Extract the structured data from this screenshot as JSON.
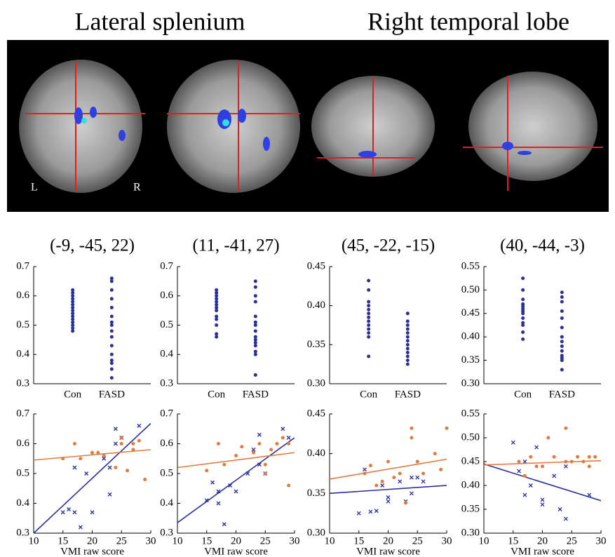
{
  "header": {
    "left_title": "Lateral splenium",
    "right_title": "Right temporal lobe",
    "label_left": "L",
    "label_right": "R"
  },
  "chart_data": [
    {
      "type": "strip",
      "title": "(-9, -45, 22)",
      "categories": [
        "Con",
        "FASD"
      ],
      "color": "#2b2f9c",
      "values": [
        [
          0.48,
          0.49,
          0.5,
          0.51,
          0.52,
          0.53,
          0.54,
          0.55,
          0.56,
          0.57,
          0.58,
          0.59,
          0.6,
          0.61,
          0.62
        ],
        [
          0.32,
          0.35,
          0.37,
          0.38,
          0.4,
          0.43,
          0.46,
          0.48,
          0.5,
          0.51,
          0.53,
          0.56,
          0.59,
          0.62,
          0.65,
          0.66
        ]
      ],
      "ylim": [
        0.3,
        0.7
      ],
      "yticks": [
        0.3,
        0.4,
        0.5,
        0.6,
        0.7
      ]
    },
    {
      "type": "strip",
      "title": "(11, -41, 27)",
      "categories": [
        "Con",
        "FASD"
      ],
      "color": "#2b2f9c",
      "values": [
        [
          0.46,
          0.47,
          0.5,
          0.52,
          0.53,
          0.55,
          0.56,
          0.57,
          0.58,
          0.59,
          0.6,
          0.61,
          0.62
        ],
        [
          0.33,
          0.4,
          0.41,
          0.43,
          0.44,
          0.45,
          0.46,
          0.48,
          0.5,
          0.51,
          0.53,
          0.58,
          0.6,
          0.63,
          0.65
        ]
      ],
      "ylim": [
        0.3,
        0.7
      ],
      "yticks": [
        0.3,
        0.4,
        0.5,
        0.6,
        0.7
      ]
    },
    {
      "type": "strip",
      "title": "(45, -22, -15)",
      "categories": [
        "Con",
        "FASD"
      ],
      "color": "#2b2f9c",
      "values": [
        [
          0.335,
          0.36,
          0.365,
          0.37,
          0.375,
          0.38,
          0.385,
          0.39,
          0.395,
          0.4,
          0.405,
          0.42,
          0.432
        ],
        [
          0.325,
          0.33,
          0.335,
          0.34,
          0.345,
          0.35,
          0.355,
          0.36,
          0.365,
          0.37,
          0.375,
          0.38,
          0.39
        ]
      ],
      "ylim": [
        0.3,
        0.45
      ],
      "yticks": [
        {
          "value": 0.3,
          "label": "0.30"
        },
        0.35,
        {
          "value": 0.4,
          "label": "0.40"
        },
        0.45
      ]
    },
    {
      "type": "strip",
      "title": "(40, -44, -3)",
      "categories": [
        "Con",
        "FASD"
      ],
      "color": "#2b2f9c",
      "values": [
        [
          0.395,
          0.41,
          0.425,
          0.43,
          0.44,
          0.45,
          0.455,
          0.46,
          0.465,
          0.47,
          0.48,
          0.5,
          0.525
        ],
        [
          0.33,
          0.35,
          0.355,
          0.36,
          0.37,
          0.38,
          0.39,
          0.4,
          0.42,
          0.44,
          0.455,
          0.475,
          0.485,
          0.495
        ]
      ],
      "ylim": [
        0.3,
        0.55
      ],
      "yticks": [
        {
          "value": 0.3,
          "label": "0.30"
        },
        0.35,
        {
          "value": 0.4,
          "label": "0.40"
        },
        0.45,
        {
          "value": 0.5,
          "label": "0.50"
        },
        0.55
      ]
    },
    {
      "type": "scatter",
      "xlabel": "VMI raw score",
      "xlim": [
        10,
        30
      ],
      "xticks": [
        10,
        15,
        20,
        25,
        30
      ],
      "ylim": [
        0.3,
        0.7
      ],
      "yticks": [
        0.3,
        0.4,
        0.5,
        0.6,
        0.7
      ],
      "series": [
        {
          "color": "#2b2f9c",
          "marker": "x",
          "x": [
            15,
            16,
            17,
            17,
            18,
            19,
            20,
            22,
            23,
            23,
            24,
            24,
            25,
            28
          ],
          "values": [
            0.37,
            0.38,
            0.52,
            0.37,
            0.32,
            0.5,
            0.37,
            0.55,
            0.43,
            0.52,
            0.65,
            0.6,
            0.62,
            0.66
          ],
          "fit_x": [
            10,
            30
          ],
          "fit_y": [
            0.3,
            0.668
          ]
        },
        {
          "color": "#e07b3f",
          "marker": "o",
          "x": [
            15,
            17,
            18,
            20,
            21,
            22,
            24,
            25,
            25,
            26,
            27,
            27,
            28,
            29
          ],
          "values": [
            0.55,
            0.6,
            0.55,
            0.57,
            0.57,
            0.56,
            0.52,
            0.62,
            0.6,
            0.51,
            0.58,
            0.6,
            0.61,
            0.48
          ],
          "fit_x": [
            10,
            30
          ],
          "fit_y": [
            0.545,
            0.58
          ]
        }
      ]
    },
    {
      "type": "scatter",
      "xlabel": "VMI raw score",
      "xlim": [
        10,
        30
      ],
      "xticks": [
        10,
        15,
        20,
        25,
        30
      ],
      "ylim": [
        0.3,
        0.7
      ],
      "yticks": [
        0.3,
        0.4,
        0.5,
        0.6,
        0.7
      ],
      "series": [
        {
          "color": "#2b2f9c",
          "marker": "x",
          "x": [
            15,
            16,
            17,
            17,
            18,
            19,
            20,
            22,
            23,
            24,
            24,
            25,
            28,
            29
          ],
          "values": [
            0.41,
            0.47,
            0.4,
            0.44,
            0.33,
            0.46,
            0.44,
            0.5,
            0.58,
            0.63,
            0.53,
            0.5,
            0.65,
            0.62
          ],
          "fit_x": [
            10,
            30
          ],
          "fit_y": [
            0.335,
            0.62
          ]
        },
        {
          "color": "#e07b3f",
          "marker": "o",
          "x": [
            15,
            17,
            18,
            20,
            21,
            23,
            24,
            25,
            25,
            26,
            27,
            28,
            29,
            29
          ],
          "values": [
            0.51,
            0.6,
            0.53,
            0.56,
            0.59,
            0.57,
            0.6,
            0.5,
            0.53,
            0.58,
            0.6,
            0.62,
            0.6,
            0.46
          ],
          "fit_x": [
            10,
            30
          ],
          "fit_y": [
            0.52,
            0.57
          ]
        }
      ]
    },
    {
      "type": "scatter",
      "xlabel": "VMI raw score",
      "xlim": [
        10,
        30
      ],
      "xticks": [
        10,
        15,
        20,
        25,
        30
      ],
      "ylim": [
        0.3,
        0.45
      ],
      "yticks": [
        {
          "value": 0.3,
          "label": "0.30"
        },
        0.35,
        {
          "value": 0.4,
          "label": "0.40"
        },
        0.45
      ],
      "series": [
        {
          "color": "#2b2f9c",
          "marker": "x",
          "x": [
            15,
            16,
            17,
            18,
            19,
            20,
            20,
            22,
            23,
            24,
            24,
            25,
            26
          ],
          "values": [
            0.325,
            0.38,
            0.327,
            0.328,
            0.36,
            0.345,
            0.34,
            0.365,
            0.34,
            0.37,
            0.35,
            0.37,
            0.365
          ],
          "fit_x": [
            10,
            30
          ],
          "fit_y": [
            0.35,
            0.36
          ]
        },
        {
          "color": "#e07b3f",
          "marker": "o",
          "x": [
            16,
            17,
            18,
            19,
            20,
            21,
            22,
            23,
            24,
            24,
            25,
            26,
            28,
            29,
            30
          ],
          "values": [
            0.375,
            0.385,
            0.36,
            0.365,
            0.39,
            0.37,
            0.375,
            0.338,
            0.42,
            0.432,
            0.39,
            0.375,
            0.4,
            0.38,
            0.432
          ],
          "fit_x": [
            10,
            30
          ],
          "fit_y": [
            0.368,
            0.393
          ]
        }
      ]
    },
    {
      "type": "scatter",
      "xlabel": "VMI raw score",
      "xlim": [
        10,
        30
      ],
      "xticks": [
        10,
        15,
        20,
        25,
        30
      ],
      "ylim": [
        0.3,
        0.55
      ],
      "yticks": [
        {
          "value": 0.3,
          "label": "0.30"
        },
        0.35,
        {
          "value": 0.4,
          "label": "0.40"
        },
        0.45,
        {
          "value": 0.5,
          "label": "0.50"
        },
        0.55
      ],
      "series": [
        {
          "color": "#2b2f9c",
          "marker": "x",
          "x": [
            15,
            16,
            17,
            17,
            18,
            19,
            20,
            20,
            22,
            23,
            24,
            24,
            28
          ],
          "values": [
            0.49,
            0.43,
            0.45,
            0.38,
            0.4,
            0.48,
            0.37,
            0.36,
            0.42,
            0.35,
            0.33,
            0.44,
            0.38
          ],
          "fit_x": [
            10,
            30
          ],
          "fit_y": [
            0.445,
            0.368
          ]
        },
        {
          "color": "#e07b3f",
          "marker": "o",
          "x": [
            16,
            17,
            18,
            19,
            20,
            21,
            22,
            24,
            24,
            25,
            26,
            27,
            28,
            28,
            29
          ],
          "values": [
            0.45,
            0.42,
            0.46,
            0.44,
            0.44,
            0.5,
            0.46,
            0.52,
            0.45,
            0.45,
            0.46,
            0.45,
            0.46,
            0.44,
            0.46
          ],
          "fit_x": [
            10,
            30
          ],
          "fit_y": [
            0.443,
            0.452
          ]
        }
      ]
    }
  ]
}
